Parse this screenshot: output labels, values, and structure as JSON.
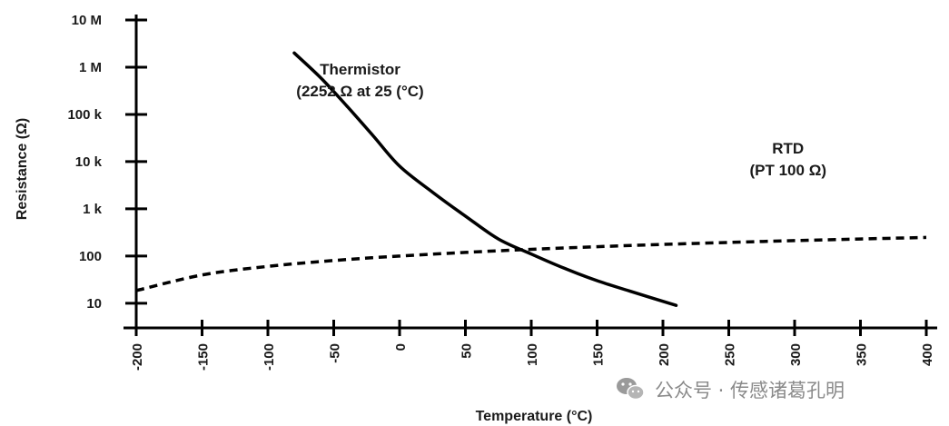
{
  "chart_data": {
    "type": "line",
    "title": "",
    "xlabel": "Temperature (°C)",
    "ylabel": "Resistance (Ω)",
    "x_ticks": [
      "-200",
      "-150",
      "-100",
      "-50",
      "0",
      "50",
      "100",
      "150",
      "200",
      "250",
      "300",
      "350",
      "400"
    ],
    "x_tick_values": [
      -200,
      -150,
      -100,
      -50,
      0,
      50,
      100,
      150,
      200,
      250,
      300,
      350,
      400
    ],
    "xlim": [
      -200,
      400
    ],
    "y_scale": "log",
    "y_ticks": [
      "10 M",
      "1 M",
      "100 k",
      "10 k",
      "1 k",
      "100",
      "10"
    ],
    "y_tick_values": [
      10000000,
      1000000,
      100000,
      10000,
      1000,
      100,
      10
    ],
    "ylim": [
      3,
      10000000
    ],
    "series": [
      {
        "name": "Thermistor",
        "line_style": "solid",
        "x": [
          -80,
          -60,
          -40,
          -20,
          0,
          25,
          50,
          75,
          100,
          125,
          150,
          175,
          210
        ],
        "y": [
          2000000,
          600000,
          150000,
          35000,
          8000,
          2252,
          700,
          230,
          110,
          55,
          30,
          18,
          9
        ]
      },
      {
        "name": "RTD",
        "line_style": "dashed",
        "x": [
          -200,
          -150,
          -100,
          -50,
          0,
          50,
          100,
          150,
          200,
          250,
          300,
          350,
          400
        ],
        "y": [
          18.5,
          39.7,
          60.3,
          80.3,
          100,
          119.4,
          138.5,
          157.3,
          175.9,
          194.1,
          212.1,
          229.7,
          247.1
        ]
      }
    ],
    "annotations": [
      {
        "lines": [
          "Thermistor",
          "(2252 Ω at 25 (°C)"
        ],
        "x": -30,
        "y": 700000
      },
      {
        "lines": [
          "RTD",
          "(PT 100 Ω)"
        ],
        "x": 295,
        "y": 15000
      }
    ]
  },
  "watermark": {
    "icon": "wechat-icon",
    "text": "公众号 · 传感诸葛孔明"
  },
  "colors": {
    "line": "#000000",
    "text": "#1a1a1a",
    "watermark": "#8a8a8a"
  }
}
